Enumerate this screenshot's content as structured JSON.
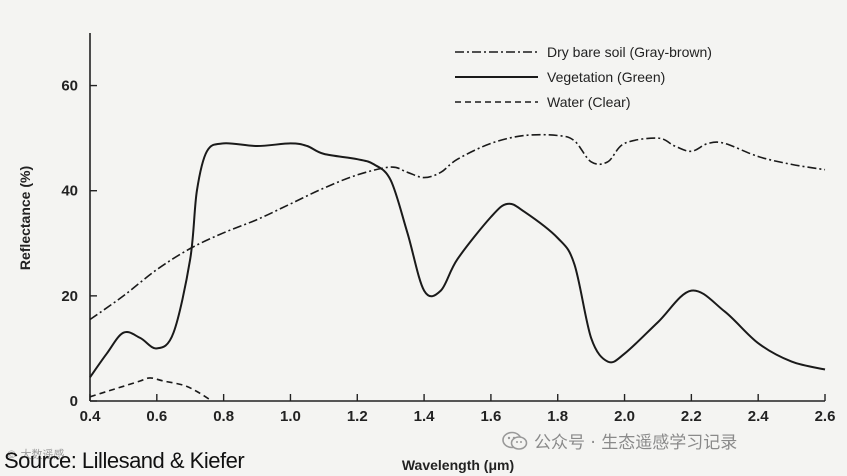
{
  "chart_data": {
    "type": "line",
    "xlabel": "Wavelength (μm)",
    "ylabel": "Reflectance (%)",
    "xlim": [
      0.4,
      2.6
    ],
    "ylim": [
      0,
      70
    ],
    "x_ticks": [
      "0.4",
      "0.6",
      "0.8",
      "1.0",
      "1.2",
      "1.4",
      "1.6",
      "1.8",
      "2.0",
      "2.2",
      "2.4",
      "2.6"
    ],
    "y_ticks": [
      "0",
      "20",
      "40",
      "60"
    ],
    "grid": false,
    "legend_position": "top-right",
    "series": [
      {
        "name": "Dry bare soil (Gray-brown)",
        "style": "dash-dot",
        "points": [
          [
            0.4,
            15.5
          ],
          [
            0.5,
            20
          ],
          [
            0.6,
            25
          ],
          [
            0.7,
            29
          ],
          [
            0.8,
            32
          ],
          [
            0.9,
            34.5
          ],
          [
            1.0,
            37.5
          ],
          [
            1.1,
            40.5
          ],
          [
            1.2,
            43
          ],
          [
            1.3,
            44.5
          ],
          [
            1.35,
            43.5
          ],
          [
            1.4,
            42.5
          ],
          [
            1.45,
            43.5
          ],
          [
            1.5,
            46
          ],
          [
            1.6,
            49
          ],
          [
            1.7,
            50.5
          ],
          [
            1.8,
            50.5
          ],
          [
            1.85,
            49.5
          ],
          [
            1.9,
            45.5
          ],
          [
            1.95,
            45.5
          ],
          [
            2.0,
            49
          ],
          [
            2.1,
            50
          ],
          [
            2.15,
            48.5
          ],
          [
            2.2,
            47.5
          ],
          [
            2.25,
            49
          ],
          [
            2.3,
            49
          ],
          [
            2.4,
            46.5
          ],
          [
            2.5,
            45
          ],
          [
            2.6,
            44
          ]
        ]
      },
      {
        "name": "Vegetation (Green)",
        "style": "solid",
        "points": [
          [
            0.4,
            4.5
          ],
          [
            0.45,
            9
          ],
          [
            0.5,
            13
          ],
          [
            0.55,
            12
          ],
          [
            0.6,
            10
          ],
          [
            0.65,
            13
          ],
          [
            0.7,
            27
          ],
          [
            0.72,
            40
          ],
          [
            0.75,
            47.5
          ],
          [
            0.8,
            49
          ],
          [
            0.9,
            48.5
          ],
          [
            1.0,
            49
          ],
          [
            1.05,
            48.5
          ],
          [
            1.1,
            47
          ],
          [
            1.2,
            46
          ],
          [
            1.25,
            45
          ],
          [
            1.3,
            42
          ],
          [
            1.35,
            32
          ],
          [
            1.4,
            21
          ],
          [
            1.45,
            21
          ],
          [
            1.5,
            27
          ],
          [
            1.6,
            35
          ],
          [
            1.65,
            37.5
          ],
          [
            1.7,
            36
          ],
          [
            1.8,
            31
          ],
          [
            1.85,
            26
          ],
          [
            1.9,
            12
          ],
          [
            1.95,
            7.5
          ],
          [
            2.0,
            9
          ],
          [
            2.1,
            15
          ],
          [
            2.2,
            21
          ],
          [
            2.3,
            17
          ],
          [
            2.4,
            11
          ],
          [
            2.5,
            7.5
          ],
          [
            2.6,
            6
          ]
        ]
      },
      {
        "name": "Water (Clear)",
        "style": "dashed",
        "points": [
          [
            0.4,
            0.8
          ],
          [
            0.45,
            1.8
          ],
          [
            0.5,
            2.8
          ],
          [
            0.55,
            3.8
          ],
          [
            0.58,
            4.4
          ],
          [
            0.62,
            3.8
          ],
          [
            0.68,
            3
          ],
          [
            0.72,
            1.8
          ],
          [
            0.76,
            0.2
          ]
        ]
      }
    ]
  },
  "source": "Source: Lillesand & Kiefer",
  "watermark": "公众号 · 生态遥感学习记录",
  "watermark_small": "© 大数遥感"
}
